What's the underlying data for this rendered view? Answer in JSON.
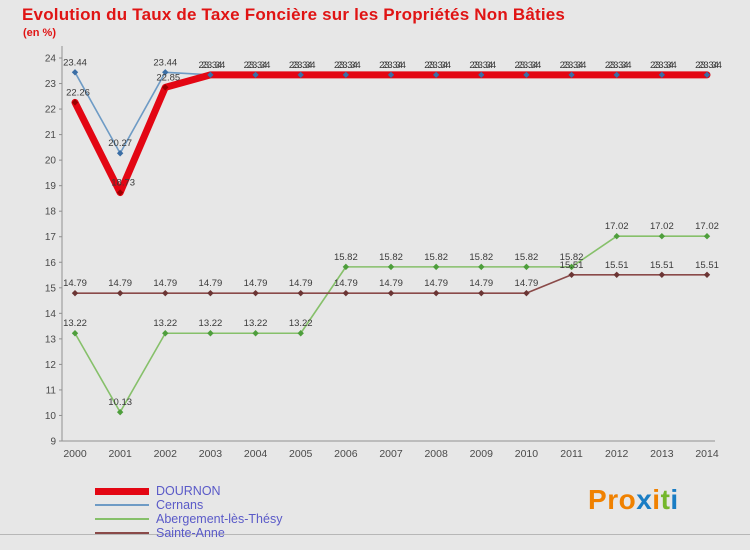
{
  "chart_data": {
    "type": "line",
    "title": "Evolution du Taux de Taxe Foncière sur les Propriétés Non Bâties",
    "subtitle": "(en %)",
    "xlabel": "",
    "ylabel": "en %",
    "x": [
      2000,
      2001,
      2002,
      2003,
      2004,
      2005,
      2006,
      2007,
      2008,
      2009,
      2010,
      2011,
      2012,
      2013,
      2014
    ],
    "ylim": [
      9,
      24
    ],
    "yticks": [
      9,
      10,
      11,
      12,
      13,
      14,
      15,
      16,
      17,
      18,
      19,
      20,
      21,
      22,
      23,
      24
    ],
    "grid": false,
    "legend_position": "bottom-left",
    "axis_color": "#909090",
    "tick_text_color": "#4a4a4a",
    "label_color": "#3a3a3a",
    "draw_order": [
      1,
      2,
      3,
      0
    ],
    "series": [
      {
        "name": "DOURNON",
        "color": "#e30613",
        "marker_color": "#9b0000",
        "width": 7,
        "label_dx": 3,
        "values": [
          22.26,
          18.73,
          22.85,
          23.34,
          23.34,
          23.34,
          23.34,
          23.34,
          23.34,
          23.34,
          23.34,
          23.34,
          23.34,
          23.34,
          23.34
        ],
        "labels": [
          "22.26",
          "18.73",
          "22.85",
          "23.34",
          "23.34",
          "23.34",
          "23.34",
          "23.34",
          "23.34",
          "23.34",
          "23.34",
          "23.34",
          "23.34",
          "23.34",
          "23.34"
        ]
      },
      {
        "name": "Cernans",
        "color": "#6e9bc5",
        "marker_color": "#3b6ea5",
        "width": 1.6,
        "label_dx": 0,
        "values": [
          23.44,
          20.27,
          23.44,
          23.34,
          23.34,
          23.34,
          23.34,
          23.34,
          23.34,
          23.34,
          23.34,
          23.34,
          23.34,
          23.34,
          23.34
        ],
        "labels": [
          "23.44",
          "20.27",
          "23.44",
          "23.34",
          "23.34",
          "23.34",
          "23.34",
          "23.34",
          "23.34",
          "23.34",
          "23.34",
          "23.34",
          "23.34",
          "23.34",
          "23.34"
        ]
      },
      {
        "name": "Abergement-lès-Thésy",
        "color": "#86c06a",
        "marker_color": "#4e9e3c",
        "width": 1.6,
        "label_dx": 0,
        "values": [
          13.22,
          10.13,
          13.22,
          13.22,
          13.22,
          13.22,
          15.82,
          15.82,
          15.82,
          15.82,
          15.82,
          15.82,
          17.02,
          17.02,
          17.02
        ],
        "labels": [
          "13.22",
          "10.13",
          "13.22",
          "13.22",
          "13.22",
          "13.22",
          "15.82",
          "15.82",
          "15.82",
          "15.82",
          "15.82",
          "15.82",
          "17.02",
          "17.02",
          "17.02"
        ]
      },
      {
        "name": "Sainte-Anne",
        "color": "#8a4a49",
        "marker_color": "#6b3534",
        "width": 1.6,
        "label_dx": 0,
        "values": [
          14.79,
          14.79,
          14.79,
          14.79,
          14.79,
          14.79,
          14.79,
          14.79,
          14.79,
          14.79,
          14.79,
          15.51,
          15.51,
          15.51,
          15.51
        ],
        "labels": [
          "14.79",
          "14.79",
          "14.79",
          "14.79",
          "14.79",
          "14.79",
          "14.79",
          "14.79",
          "14.79",
          "14.79",
          "14.79",
          "15.51",
          "15.51",
          "15.51",
          "15.51"
        ]
      }
    ]
  },
  "legend": {
    "text_color": "#5a5ac8"
  },
  "logo": {
    "letters": [
      {
        "ch": "P",
        "color": "#f08100"
      },
      {
        "ch": "r",
        "color": "#f08100"
      },
      {
        "ch": "o",
        "color": "#f08100"
      },
      {
        "ch": "x",
        "color": "#1a7dc4"
      },
      {
        "ch": "i",
        "color": "#f08100"
      },
      {
        "ch": "t",
        "color": "#74b72c"
      },
      {
        "ch": "i",
        "color": "#1a7dc4"
      }
    ]
  }
}
